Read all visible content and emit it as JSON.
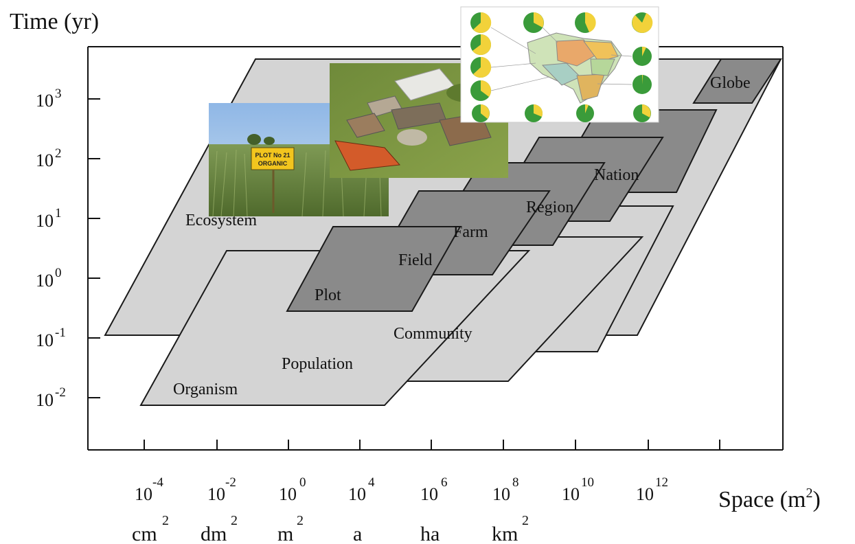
{
  "y_axis": {
    "title": "Time (yr)",
    "base": "10",
    "exponents": [
      "3",
      "2",
      "1",
      "0",
      "-1",
      "-2"
    ]
  },
  "x_axis": {
    "title_main": "Space (m",
    "title_sup": "2",
    "title_end": ")",
    "base": "10",
    "exponents": [
      "-4",
      "-2",
      "0",
      "4",
      "6",
      "8",
      "10",
      "12"
    ]
  },
  "units": [
    {
      "text": "cm",
      "sup": "2"
    },
    {
      "text": "dm",
      "sup": "2"
    },
    {
      "text": "m",
      "sup": "2"
    },
    {
      "text": "a",
      "sup": ""
    },
    {
      "text": "ha",
      "sup": ""
    },
    {
      "text": "km",
      "sup": "2"
    }
  ],
  "planes": {
    "ecosystem": "Ecosystem",
    "organism": "Organism",
    "population": "Population",
    "community": "Community",
    "plot": "Plot",
    "field": "Field",
    "farm": "Farm",
    "region": "Region",
    "nation": "Nation",
    "globe": "Globe"
  },
  "photos": {
    "plot_sign_line1": "PLOT No 21",
    "plot_sign_line2": "ORGANIC"
  },
  "colors": {
    "light_plane": "#d4d4d4",
    "dark_plane": "#8a8a8a",
    "edge": "#1a1a1a"
  }
}
